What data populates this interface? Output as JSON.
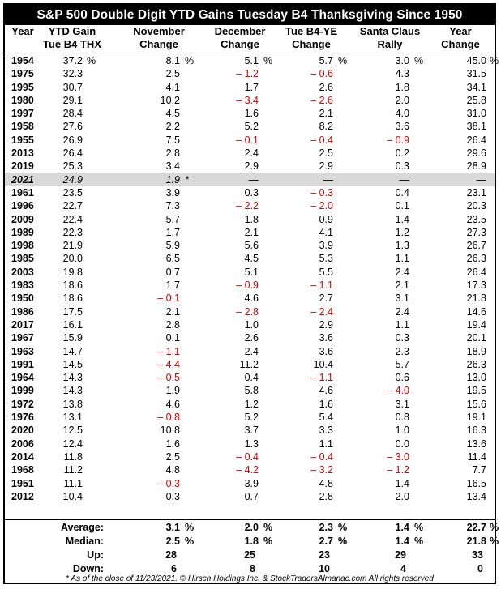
{
  "title": "S&P 500 Double Digit YTD Gains Tuesday B4 Thanksgiving Since 1950",
  "columns": [
    {
      "l1": "",
      "l2": "Year"
    },
    {
      "l1": "YTD Gain",
      "l2": "Tue B4 THX"
    },
    {
      "l1": "November",
      "l2": "Change"
    },
    {
      "l1": "December",
      "l2": "Change"
    },
    {
      "l1": "Tue B4-YE",
      "l2": "Change"
    },
    {
      "l1": "Santa Claus",
      "l2": "Rally"
    },
    {
      "l1": "Year",
      "l2": "Change"
    }
  ],
  "percent_sign": "%",
  "current_marker": "*",
  "rows": [
    {
      "year": "1954",
      "ytd": "37.2",
      "nov": "8.1",
      "dec": "5.1",
      "tue": "5.7",
      "santa": "3.0",
      "yr": "45.0",
      "first": true
    },
    {
      "year": "1975",
      "ytd": "32.3",
      "nov": "2.5",
      "dec": "– 1.2",
      "tue": "– 0.6",
      "santa": "4.3",
      "yr": "31.5"
    },
    {
      "year": "1995",
      "ytd": "30.7",
      "nov": "4.1",
      "dec": "1.7",
      "tue": "2.6",
      "santa": "1.8",
      "yr": "34.1"
    },
    {
      "year": "1980",
      "ytd": "29.1",
      "nov": "10.2",
      "dec": "– 3.4",
      "tue": "– 2.6",
      "santa": "2.0",
      "yr": "25.8"
    },
    {
      "year": "1997",
      "ytd": "28.4",
      "nov": "4.5",
      "dec": "1.6",
      "tue": "2.1",
      "santa": "4.0",
      "yr": "31.0"
    },
    {
      "year": "1958",
      "ytd": "27.6",
      "nov": "2.2",
      "dec": "5.2",
      "tue": "8.2",
      "santa": "3.6",
      "yr": "38.1"
    },
    {
      "year": "1955",
      "ytd": "26.9",
      "nov": "7.5",
      "dec": "– 0.1",
      "tue": "– 0.4",
      "santa": "– 0.9",
      "yr": "26.4"
    },
    {
      "year": "2013",
      "ytd": "26.4",
      "nov": "2.8",
      "dec": "2.4",
      "tue": "2.5",
      "santa": "0.2",
      "yr": "29.6"
    },
    {
      "year": "2019",
      "ytd": "25.3",
      "nov": "3.4",
      "dec": "2.9",
      "tue": "2.9",
      "santa": "0.3",
      "yr": "28.9"
    },
    {
      "year": "2021",
      "ytd": "24.9",
      "nov": "1.9",
      "dec": "—",
      "tue": "—",
      "santa": "—",
      "yr": "—",
      "current": true
    },
    {
      "year": "1961",
      "ytd": "23.5",
      "nov": "3.9",
      "dec": "0.3",
      "tue": "– 0.3",
      "santa": "0.4",
      "yr": "23.1"
    },
    {
      "year": "1996",
      "ytd": "22.7",
      "nov": "7.3",
      "dec": "– 2.2",
      "tue": "– 2.0",
      "santa": "0.1",
      "yr": "20.3"
    },
    {
      "year": "2009",
      "ytd": "22.4",
      "nov": "5.7",
      "dec": "1.8",
      "tue": "0.9",
      "santa": "1.4",
      "yr": "23.5"
    },
    {
      "year": "1989",
      "ytd": "22.3",
      "nov": "1.7",
      "dec": "2.1",
      "tue": "4.1",
      "santa": "1.2",
      "yr": "27.3"
    },
    {
      "year": "1998",
      "ytd": "21.9",
      "nov": "5.9",
      "dec": "5.6",
      "tue": "3.9",
      "santa": "1.3",
      "yr": "26.7"
    },
    {
      "year": "1985",
      "ytd": "20.0",
      "nov": "6.5",
      "dec": "4.5",
      "tue": "5.3",
      "santa": "1.1",
      "yr": "26.3"
    },
    {
      "year": "2003",
      "ytd": "19.8",
      "nov": "0.7",
      "dec": "5.1",
      "tue": "5.5",
      "santa": "2.4",
      "yr": "26.4"
    },
    {
      "year": "1983",
      "ytd": "18.6",
      "nov": "1.7",
      "dec": "– 0.9",
      "tue": "– 1.1",
      "santa": "2.1",
      "yr": "17.3"
    },
    {
      "year": "1950",
      "ytd": "18.6",
      "nov": "– 0.1",
      "dec": "4.6",
      "tue": "2.7",
      "santa": "3.1",
      "yr": "21.8"
    },
    {
      "year": "1986",
      "ytd": "17.5",
      "nov": "2.1",
      "dec": "– 2.8",
      "tue": "– 2.4",
      "santa": "2.4",
      "yr": "14.6"
    },
    {
      "year": "2017",
      "ytd": "16.1",
      "nov": "2.8",
      "dec": "1.0",
      "tue": "2.9",
      "santa": "1.1",
      "yr": "19.4"
    },
    {
      "year": "1967",
      "ytd": "15.9",
      "nov": "0.1",
      "dec": "2.6",
      "tue": "3.6",
      "santa": "0.3",
      "yr": "20.1"
    },
    {
      "year": "1963",
      "ytd": "14.7",
      "nov": "– 1.1",
      "dec": "2.4",
      "tue": "3.6",
      "santa": "2.3",
      "yr": "18.9"
    },
    {
      "year": "1991",
      "ytd": "14.5",
      "nov": "– 4.4",
      "dec": "11.2",
      "tue": "10.4",
      "santa": "5.7",
      "yr": "26.3"
    },
    {
      "year": "1964",
      "ytd": "14.3",
      "nov": "– 0.5",
      "dec": "0.4",
      "tue": "– 1.1",
      "santa": "0.6",
      "yr": "13.0"
    },
    {
      "year": "1999",
      "ytd": "14.3",
      "nov": "1.9",
      "dec": "5.8",
      "tue": "4.6",
      "santa": "– 4.0",
      "yr": "19.5"
    },
    {
      "year": "1972",
      "ytd": "13.8",
      "nov": "4.6",
      "dec": "1.2",
      "tue": "1.6",
      "santa": "3.1",
      "yr": "15.6"
    },
    {
      "year": "1976",
      "ytd": "13.1",
      "nov": "– 0.8",
      "dec": "5.2",
      "tue": "5.4",
      "santa": "0.8",
      "yr": "19.1"
    },
    {
      "year": "2020",
      "ytd": "12.5",
      "nov": "10.8",
      "dec": "3.7",
      "tue": "3.3",
      "santa": "1.0",
      "yr": "16.3"
    },
    {
      "year": "2006",
      "ytd": "12.4",
      "nov": "1.6",
      "dec": "1.3",
      "tue": "1.1",
      "santa": "0.0",
      "yr": "13.6"
    },
    {
      "year": "2014",
      "ytd": "11.8",
      "nov": "2.5",
      "dec": "– 0.4",
      "tue": "– 0.4",
      "santa": "– 3.0",
      "yr": "11.4"
    },
    {
      "year": "1968",
      "ytd": "11.2",
      "nov": "4.8",
      "dec": "– 4.2",
      "tue": "– 3.2",
      "santa": "– 1.2",
      "yr": "7.7"
    },
    {
      "year": "1951",
      "ytd": "11.1",
      "nov": "– 0.3",
      "dec": "3.9",
      "tue": "4.8",
      "santa": "1.4",
      "yr": "16.5"
    },
    {
      "year": "2012",
      "ytd": "10.4",
      "nov": "0.3",
      "dec": "0.7",
      "tue": "2.8",
      "santa": "2.0",
      "yr": "13.4"
    }
  ],
  "stats": [
    {
      "label": "Average:",
      "nov": "3.1",
      "dec": "2.0",
      "tue": "2.3",
      "santa": "1.4",
      "yr": "22.7",
      "pct": true
    },
    {
      "label": "Median:",
      "nov": "2.5",
      "dec": "1.8",
      "tue": "2.7",
      "santa": "1.4",
      "yr": "21.8",
      "pct": true
    },
    {
      "label": "Up:",
      "nov": "28",
      "dec": "25",
      "tue": "23",
      "santa": "29",
      "yr": "33",
      "pct": false
    },
    {
      "label": "Down:",
      "nov": "6",
      "dec": "8",
      "tue": "10",
      "santa": "4",
      "yr": "0",
      "pct": false
    }
  ],
  "footnote": "* As of the close of 11/23/2021. © Hirsch Holdings Inc. & StockTradersAlmanac.com All rights reserved"
}
